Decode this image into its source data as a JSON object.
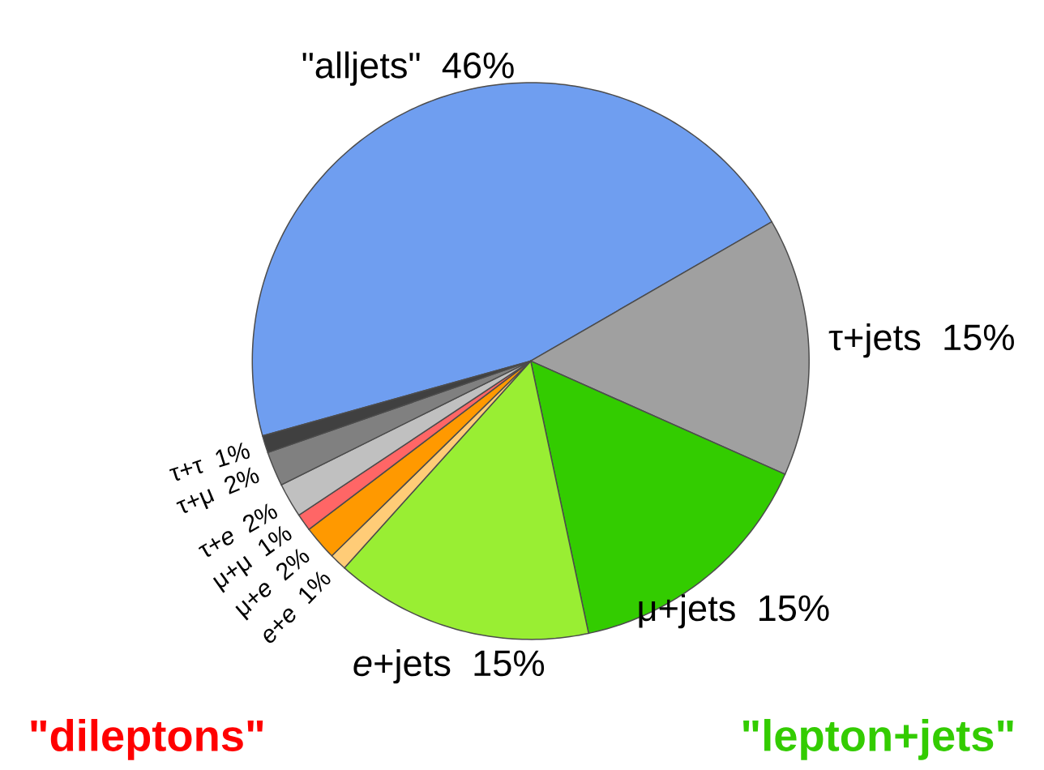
{
  "chart_data": {
    "type": "pie",
    "categories": [
      "\"alljets\"",
      "τ+jets",
      "μ+jets",
      "*e*+jets",
      "*e*+*e*",
      "μ+*e*",
      "μ+μ",
      "τ+*e*",
      "τ+μ",
      "τ+τ"
    ],
    "values": [
      46,
      15,
      15,
      15,
      1,
      2,
      1,
      2,
      2,
      1
    ],
    "value_labels": [
      "46%",
      "15%",
      "15%",
      "15%",
      "1%",
      "2%",
      "1%",
      "2%",
      "2%",
      "1%"
    ],
    "colors": [
      "#6f9ef0",
      "#a0a0a0",
      "#33cc00",
      "#99ee33",
      "#ffcc77",
      "#ff9900",
      "#ff6666",
      "#c0c0c0",
      "#808080",
      "#404040"
    ],
    "annotations": [
      "\"dileptons\"",
      "\"lepton+jets\""
    ]
  }
}
